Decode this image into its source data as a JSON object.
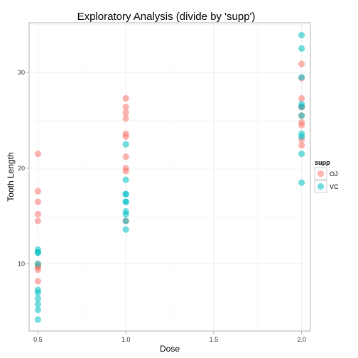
{
  "chart_data": {
    "type": "scatter",
    "title": "Exploratory Analysis (divide by 'supp')",
    "xlabel": "Dose",
    "ylabel": "Tooth Length",
    "xlim": [
      0.45,
      2.05
    ],
    "ylim": [
      3.0,
      35.2
    ],
    "xticks": [
      0.5,
      1.0,
      1.5,
      2.0
    ],
    "xtick_labels": [
      "0.5",
      "1.0",
      "1.5",
      "2.0"
    ],
    "yticks": [
      10,
      20,
      30
    ],
    "ytick_labels": [
      "10",
      "20",
      "30"
    ],
    "grid": true,
    "legend": {
      "title": "supp",
      "position": "right"
    },
    "series": [
      {
        "name": "OJ",
        "color": "#F8766D",
        "points": [
          [
            0.5,
            21.5
          ],
          [
            0.5,
            17.6
          ],
          [
            0.5,
            16.5
          ],
          [
            0.5,
            15.2
          ],
          [
            0.5,
            14.5
          ],
          [
            0.5,
            10.0
          ],
          [
            0.5,
            9.7
          ],
          [
            0.5,
            9.4
          ],
          [
            0.5,
            9.7
          ],
          [
            0.5,
            8.2
          ],
          [
            1.0,
            27.3
          ],
          [
            1.0,
            26.4
          ],
          [
            1.0,
            25.8
          ],
          [
            1.0,
            25.2
          ],
          [
            1.0,
            23.6
          ],
          [
            1.0,
            23.3
          ],
          [
            1.0,
            21.2
          ],
          [
            1.0,
            20.0
          ],
          [
            1.0,
            19.7
          ],
          [
            1.0,
            14.5
          ],
          [
            2.0,
            30.9
          ],
          [
            2.0,
            29.4
          ],
          [
            2.0,
            27.3
          ],
          [
            2.0,
            26.4
          ],
          [
            2.0,
            26.4
          ],
          [
            2.0,
            25.5
          ],
          [
            2.0,
            24.8
          ],
          [
            2.0,
            24.5
          ],
          [
            2.0,
            23.0
          ],
          [
            2.0,
            22.4
          ]
        ]
      },
      {
        "name": "VC",
        "color": "#00BFC4",
        "points": [
          [
            0.5,
            11.5
          ],
          [
            0.5,
            11.2
          ],
          [
            0.5,
            11.2
          ],
          [
            0.5,
            10.0
          ],
          [
            0.5,
            7.3
          ],
          [
            0.5,
            7.0
          ],
          [
            0.5,
            6.4
          ],
          [
            0.5,
            5.8
          ],
          [
            0.5,
            5.2
          ],
          [
            0.5,
            4.2
          ],
          [
            1.0,
            22.5
          ],
          [
            1.0,
            18.8
          ],
          [
            1.0,
            17.3
          ],
          [
            1.0,
            17.3
          ],
          [
            1.0,
            16.5
          ],
          [
            1.0,
            16.5
          ],
          [
            1.0,
            15.5
          ],
          [
            1.0,
            15.2
          ],
          [
            1.0,
            14.5
          ],
          [
            1.0,
            13.6
          ],
          [
            2.0,
            33.9
          ],
          [
            2.0,
            32.5
          ],
          [
            2.0,
            29.5
          ],
          [
            2.0,
            26.7
          ],
          [
            2.0,
            26.4
          ],
          [
            2.0,
            25.5
          ],
          [
            2.0,
            23.6
          ],
          [
            2.0,
            23.3
          ],
          [
            2.0,
            21.5
          ],
          [
            2.0,
            18.5
          ]
        ]
      }
    ]
  }
}
